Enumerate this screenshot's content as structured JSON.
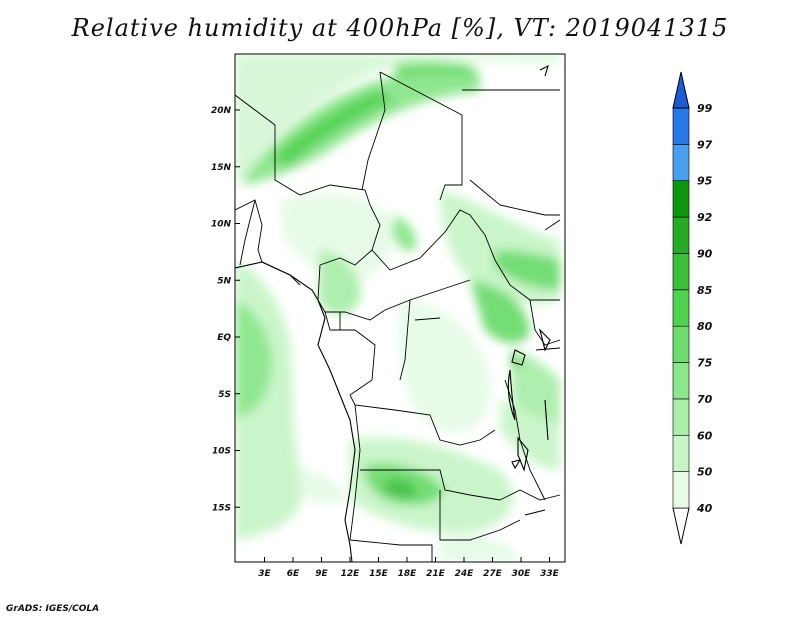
{
  "title": "Relative humidity at 400hPa [%], VT: 2019041315",
  "credit": "GrADS: IGES/COLA",
  "map": {
    "lon_ticks": [
      "3E",
      "6E",
      "9E",
      "12E",
      "15E",
      "18E",
      "21E",
      "24E",
      "27E",
      "30E",
      "33E"
    ],
    "lat_ticks": [
      "20N",
      "15N",
      "10N",
      "5N",
      "EQ",
      "5S",
      "10S",
      "15S"
    ],
    "lon_range": [
      0,
      35
    ],
    "lat_range": [
      -20,
      25
    ]
  },
  "colorbar": {
    "labels": [
      "40",
      "50",
      "60",
      "70",
      "75",
      "80",
      "85",
      "90",
      "92",
      "95",
      "97",
      "99"
    ],
    "colors": [
      "#ffffff",
      "#e6fae6",
      "#c8f5c8",
      "#aaeeaa",
      "#8ce68c",
      "#6edc6e",
      "#50d250",
      "#3cbe3c",
      "#28aa28",
      "#0f960f",
      "#4a9ef0",
      "#2a78e6",
      "#1e5ad2"
    ]
  },
  "field": {
    "palette": [
      "#e6fae6",
      "#c8f5c8",
      "#aaeeaa",
      "#8ce68c",
      "#6edc6e",
      "#50d250",
      "#3cbe3c"
    ]
  }
}
